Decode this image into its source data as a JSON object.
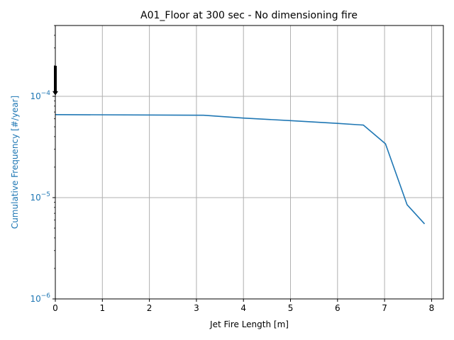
{
  "chart_data": {
    "type": "line",
    "title": "A01_Floor at  300 sec - No dimensioning fire",
    "xlabel": "Jet Fire Length [m]",
    "ylabel": "Cumulative Frequency [#/year]",
    "xlim": [
      0,
      8.25
    ],
    "ylim": [
      1e-06,
      0.0005
    ],
    "yscale": "log",
    "grid": true,
    "x_ticks": [
      "0",
      "1",
      "2",
      "3",
      "4",
      "5",
      "6",
      "7",
      "8"
    ],
    "y_ticks": [
      {
        "value": 1e-06,
        "base": "10",
        "exp": "−6"
      },
      {
        "value": 1e-05,
        "base": "10",
        "exp": "−5"
      },
      {
        "value": 0.0001,
        "base": "10",
        "exp": "−4"
      }
    ],
    "series": [
      {
        "color": "#1f77b4",
        "x": [
          0,
          3.15,
          4.0,
          5.0,
          6.0,
          6.55,
          7.02,
          7.48,
          7.85
        ],
        "y": [
          6.6e-05,
          6.5e-05,
          6.1e-05,
          5.75e-05,
          5.4e-05,
          5.2e-05,
          3.4e-05,
          8.5e-06,
          5.5e-06
        ]
      }
    ],
    "marker": {
      "x": 0,
      "y_top": 0.0002,
      "y_tip": 0.000102,
      "color": "#000000"
    },
    "colors": {
      "line": "#1f77b4",
      "ylabel": "#1f77b4",
      "yticks": "#1f77b4",
      "grid": "#b0b0b0",
      "axes": "#000000"
    }
  }
}
